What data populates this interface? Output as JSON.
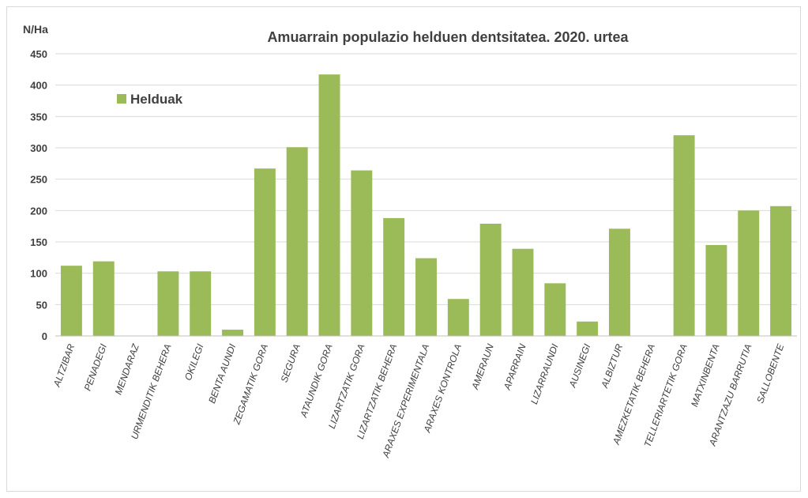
{
  "chart_data": {
    "type": "bar",
    "title": "Amuarrain populazio helduen dentsitatea. 2020. urtea",
    "ylabel": "N/Ha",
    "xlabel": "",
    "ylim": [
      0,
      450
    ],
    "yticks": [
      0,
      50,
      100,
      150,
      200,
      250,
      300,
      350,
      400,
      450
    ],
    "grid": true,
    "legend_position": "top-left",
    "color": "#9bbb59",
    "categories": [
      "ALTZIBAR",
      "PENADEGI",
      "MENDARAZ",
      "URMENDITIK BEHERA",
      "OKILEGI",
      "BENTA AUNDI",
      "ZEGAMATIK GORA",
      "SEGURA",
      "ATAUNDIK GORA",
      "LIZARTZATIK GORA",
      "LIZARTZATIK BEHERA",
      "ARAXES EXPERIMENTALA",
      "ARAXES KONTROLA",
      "AMERAUN",
      "APARRAIN",
      "LIZARRAUNDI",
      "AUSINEGI",
      "ALBIZTUR",
      "AMEZKETATIK BEHERA",
      "TELLERIARTETIK GORA",
      "MATXINBENTA",
      "ARANTZAZU BARRUTIA",
      "SALLOBENTE"
    ],
    "series": [
      {
        "name": "Helduak",
        "values": [
          112,
          119,
          0,
          103,
          103,
          10,
          267,
          301,
          417,
          264,
          188,
          124,
          59,
          179,
          139,
          84,
          23,
          171,
          0,
          320,
          145,
          200,
          207
        ]
      }
    ]
  }
}
